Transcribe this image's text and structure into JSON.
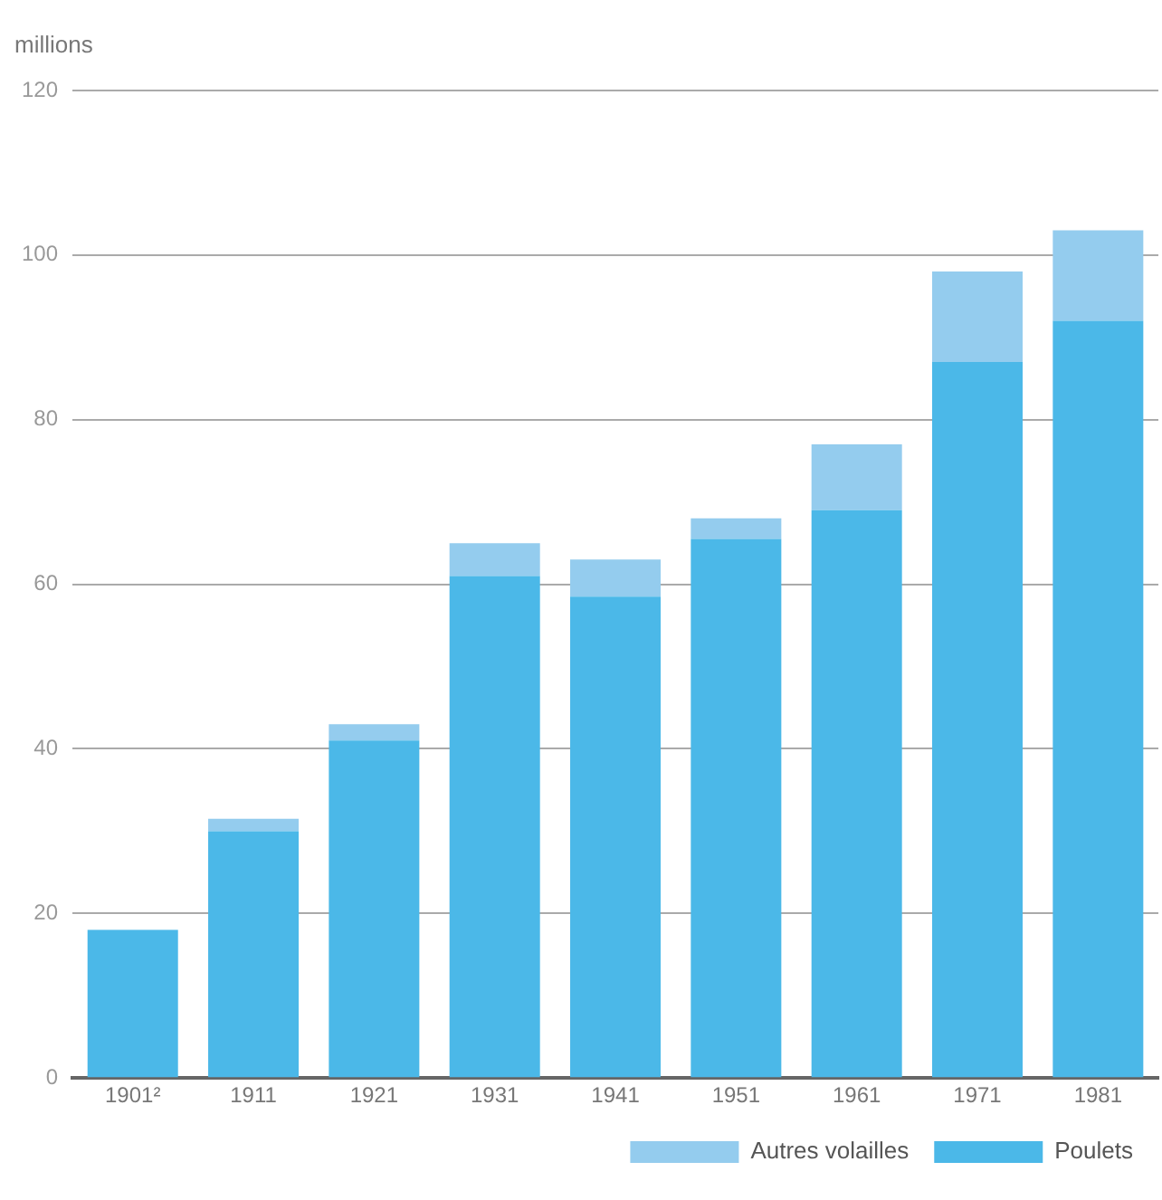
{
  "chart_data": {
    "type": "bar",
    "stacked": true,
    "ylabel": "millions",
    "categories": [
      "1901²",
      "1911",
      "1921",
      "1931",
      "1941",
      "1951",
      "1961",
      "1971",
      "1981"
    ],
    "series": [
      {
        "name": "Poulets",
        "color": "#4bb8e8",
        "values": [
          18,
          30,
          41,
          61,
          58.5,
          65.5,
          69,
          87,
          92
        ]
      },
      {
        "name": "Autres volailles",
        "color": "#94ccee",
        "values": [
          0,
          1.5,
          2,
          4,
          4.5,
          2.5,
          8,
          11,
          11
        ]
      }
    ],
    "ylim": [
      0,
      120
    ],
    "yticks": [
      0,
      20,
      40,
      60,
      80,
      100,
      120
    ],
    "grid": "y",
    "legend": "bottom right"
  }
}
